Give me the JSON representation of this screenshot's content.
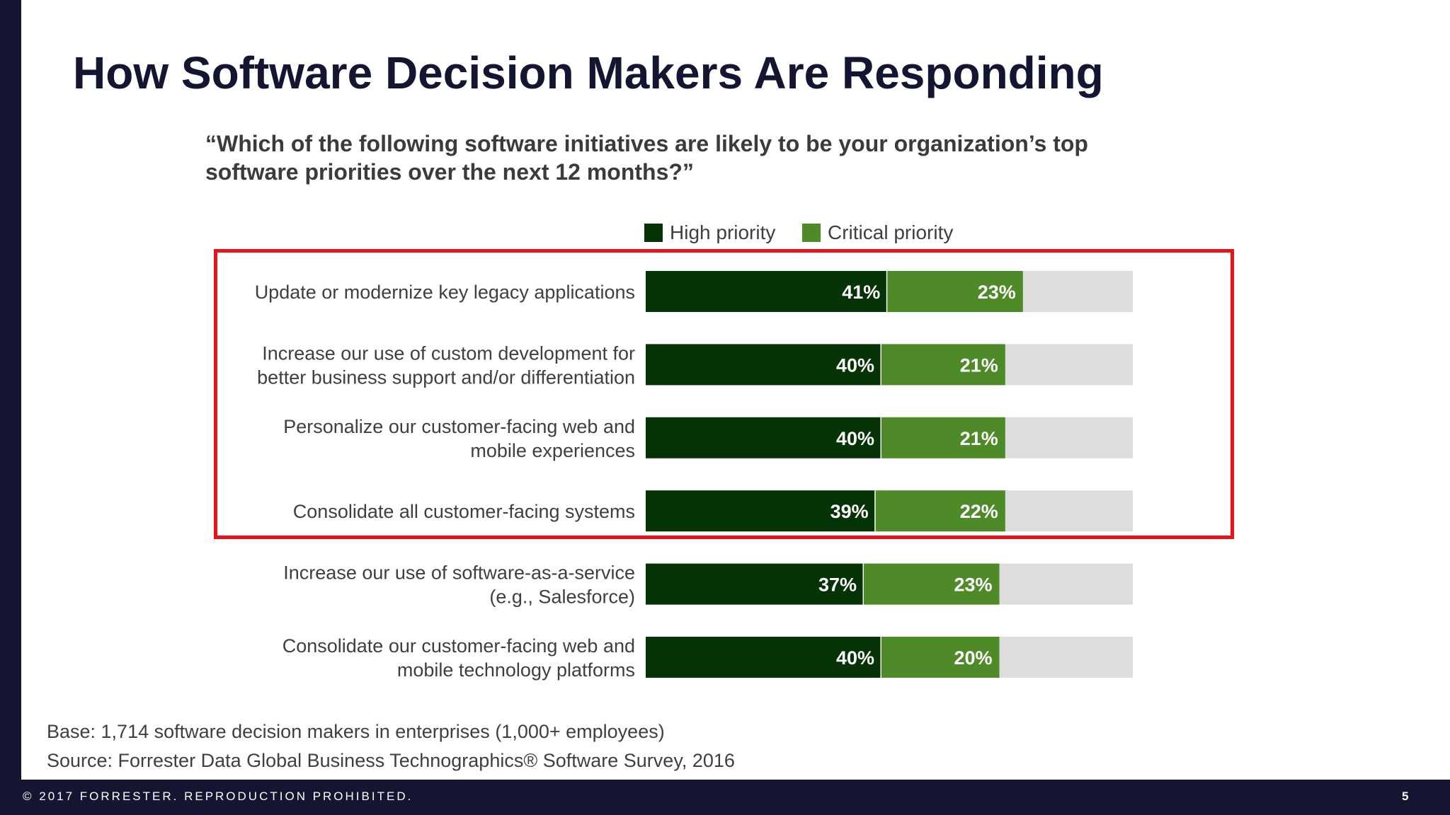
{
  "slide": {
    "title": "How Software Decision Makers Are Responding",
    "question": "“Which of the following software initiatives are likely to be your organization’s top software priorities over the next 12 months?”",
    "base": "Base: 1,714 software decision makers in enterprises (1,000+ employees)",
    "source": "Source: Forrester Data Global Business Technographics® Software Survey, 2016",
    "copyright": "© 2017 FORRESTER. REPRODUCTION PROHIBITED.",
    "page_number": "5"
  },
  "colors": {
    "high": "#063306",
    "critical": "#4e8a28",
    "remainder": "#dddddd",
    "highlight": "#e8121b",
    "navy": "#141530"
  },
  "chart_data": {
    "type": "bar",
    "orientation": "horizontal",
    "stacked": true,
    "xlim": [
      0,
      100
    ],
    "legend_position": "top",
    "categories": [
      "Update or modernize key legacy applications",
      "Increase our use of custom development for better business support and/or differentiation",
      "Personalize our customer-facing web and mobile experiences",
      "Consolidate all customer-facing systems",
      "Increase our use of software-as-a-service (e.g., Salesforce)",
      "Consolidate our customer-facing web and mobile technology platforms"
    ],
    "category_lines": [
      [
        "Update or modernize key legacy applications"
      ],
      [
        "Increase our use of custom development for",
        "better business support and/or differentiation"
      ],
      [
        "Personalize our customer-facing web and",
        "mobile experiences"
      ],
      [
        "Consolidate all customer-facing systems"
      ],
      [
        "Increase our use of software-as-a-service",
        "(e.g., Salesforce)"
      ],
      [
        "Consolidate our customer-facing web and",
        "mobile technology platforms"
      ]
    ],
    "series": [
      {
        "name": "High priority",
        "values": [
          41,
          40,
          40,
          39,
          37,
          40
        ],
        "labels": [
          "41%",
          "40%",
          "40%",
          "39%",
          "37%",
          "40%"
        ]
      },
      {
        "name": "Critical priority",
        "values": [
          23,
          21,
          21,
          22,
          23,
          20
        ],
        "labels": [
          "23%",
          "21%",
          "21%",
          "22%",
          "23%",
          "20%"
        ]
      }
    ],
    "highlighted_categories": [
      0,
      1,
      2,
      3
    ]
  }
}
